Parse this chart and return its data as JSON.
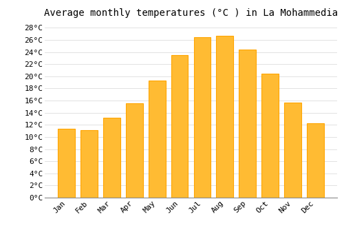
{
  "title": "Average monthly temperatures (°C ) in La Mohammedia",
  "months": [
    "Jan",
    "Feb",
    "Mar",
    "Apr",
    "May",
    "Jun",
    "Jul",
    "Aug",
    "Sep",
    "Oct",
    "Nov",
    "Dec"
  ],
  "values": [
    11.3,
    11.1,
    13.2,
    15.6,
    19.3,
    23.5,
    26.4,
    26.7,
    24.4,
    20.4,
    15.7,
    12.3
  ],
  "bar_color": "#FFBB33",
  "bar_edge_color": "#FFA500",
  "background_color": "#FFFFFF",
  "grid_color": "#DDDDDD",
  "ylim": [
    0,
    29
  ],
  "yticks": [
    0,
    2,
    4,
    6,
    8,
    10,
    12,
    14,
    16,
    18,
    20,
    22,
    24,
    26,
    28
  ],
  "ytick_labels": [
    "0°C",
    "2°C",
    "4°C",
    "6°C",
    "8°C",
    "10°C",
    "12°C",
    "14°C",
    "16°C",
    "18°C",
    "20°C",
    "22°C",
    "24°C",
    "26°C",
    "28°C"
  ],
  "title_fontsize": 10,
  "tick_fontsize": 8,
  "font_family": "monospace"
}
